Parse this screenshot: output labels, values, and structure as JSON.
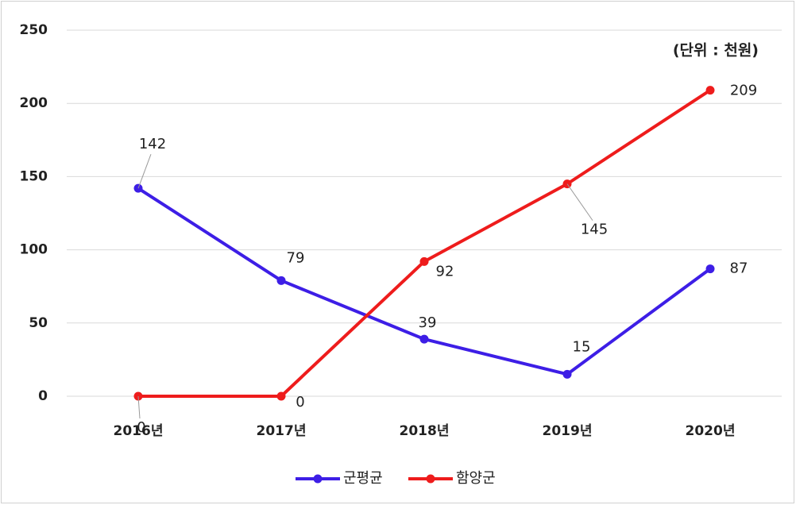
{
  "chart_data": {
    "type": "line",
    "annotation": "(단위 : 천원)",
    "categories": [
      "2016년",
      "2017년",
      "2018년",
      "2019년",
      "2020년"
    ],
    "series": [
      {
        "name": "군평균",
        "color": "#3d1ee6",
        "values": [
          142,
          79,
          39,
          15,
          87
        ]
      },
      {
        "name": "함양군",
        "color": "#ee1c1c",
        "values": [
          0,
          0,
          92,
          145,
          209
        ]
      }
    ],
    "ylim": [
      0,
      250
    ],
    "yticks": [
      0,
      50,
      100,
      150,
      200,
      250
    ],
    "grid": true,
    "legend": "bottom"
  }
}
